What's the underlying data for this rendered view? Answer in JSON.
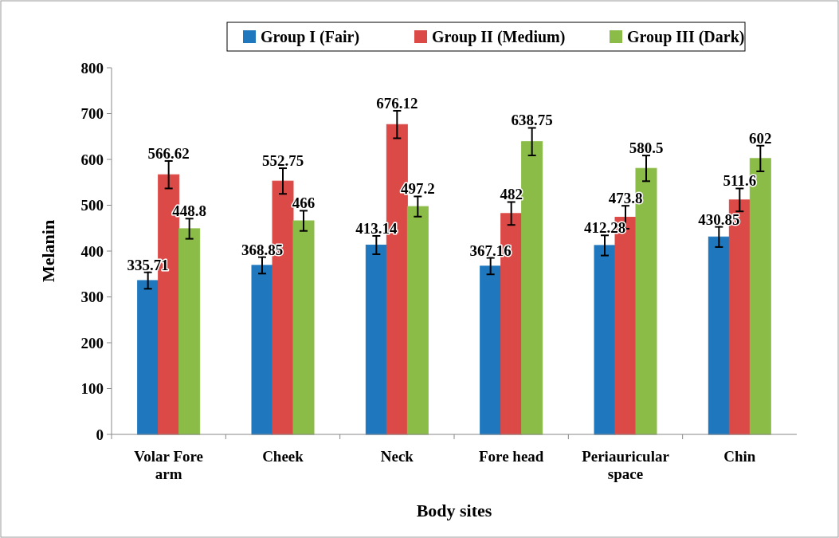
{
  "chart_data": {
    "type": "bar",
    "xlabel": "Body sites",
    "ylabel": "Melanin",
    "categories": [
      "Volar Fore arm",
      "Cheek",
      "Neck",
      "Fore head",
      "Periauricular space",
      "Chin"
    ],
    "series": [
      {
        "name": "Group I (Fair)",
        "color": "#1f78be",
        "values": [
          335.71,
          368.85,
          413.14,
          367.16,
          412.28,
          430.85
        ],
        "errors": [
          18,
          18,
          20,
          18,
          22,
          22
        ]
      },
      {
        "name": "Group II (Medium)",
        "color": "#dc4a47",
        "values": [
          566.62,
          552.75,
          676.12,
          482,
          473.8,
          511.6
        ],
        "errors": [
          30,
          28,
          30,
          25,
          25,
          25
        ]
      },
      {
        "name": "Group III (Dark)",
        "color": "#8cbc48",
        "values": [
          448.8,
          466,
          497.2,
          638.75,
          580.5,
          602
        ],
        "errors": [
          22,
          22,
          22,
          30,
          28,
          28
        ]
      }
    ],
    "ylim": [
      0,
      800
    ],
    "yticks": [
      0,
      100,
      200,
      300,
      400,
      500,
      600,
      700,
      800
    ],
    "data_labels": true,
    "legend": "top",
    "grid": false
  }
}
